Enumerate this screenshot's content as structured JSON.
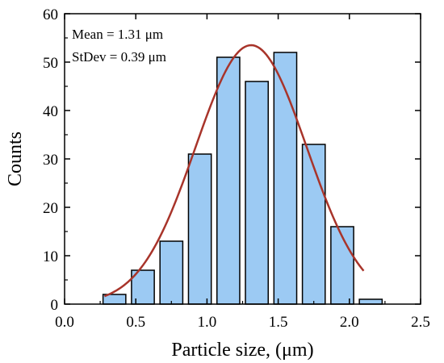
{
  "chart_data": {
    "type": "bar",
    "xlabel": "Particle size, (μm)",
    "ylabel": "Counts",
    "xlim": [
      0.0,
      2.5
    ],
    "ylim": [
      0,
      60
    ],
    "x_ticks": [
      "0.0",
      "0.5",
      "1.0",
      "1.5",
      "2.0",
      "2.5"
    ],
    "y_ticks": [
      "0",
      "10",
      "20",
      "30",
      "40",
      "50",
      "60"
    ],
    "bin_width": 0.2,
    "bins": [
      {
        "center": 0.35,
        "count": 2
      },
      {
        "center": 0.55,
        "count": 7
      },
      {
        "center": 0.75,
        "count": 13
      },
      {
        "center": 0.95,
        "count": 31
      },
      {
        "center": 1.15,
        "count": 51
      },
      {
        "center": 1.35,
        "count": 46
      },
      {
        "center": 1.55,
        "count": 52
      },
      {
        "center": 1.75,
        "count": 33
      },
      {
        "center": 1.95,
        "count": 16
      },
      {
        "center": 2.15,
        "count": 1
      }
    ],
    "fit": {
      "type": "gaussian",
      "mean": 1.31,
      "stdev": 0.39,
      "peak": 53.5,
      "x_range": [
        0.28,
        2.1
      ]
    },
    "annotations": [
      "Mean = 1.31 μm",
      "StDev = 0.39 μm"
    ],
    "grid": false,
    "colors": {
      "bar_fill": "#9ccaf3",
      "bar_stroke": "#000000",
      "fit_line": "#a8342a"
    }
  }
}
